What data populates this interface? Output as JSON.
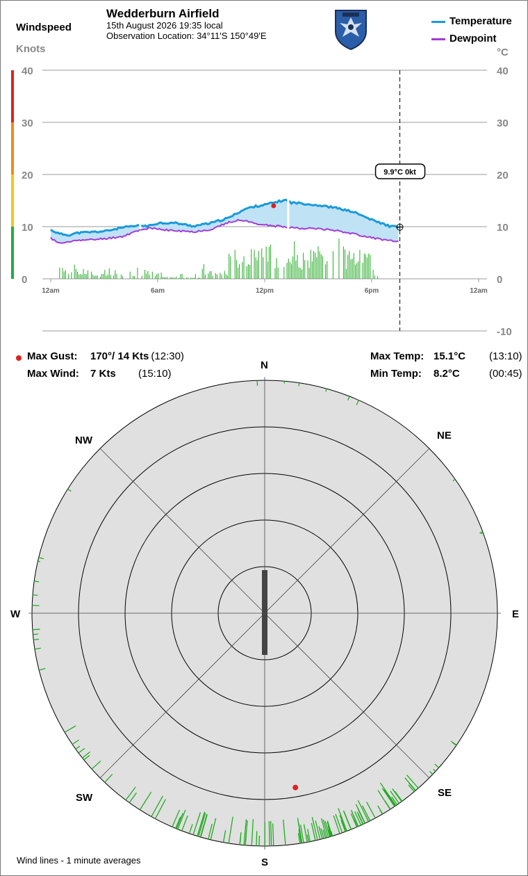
{
  "header": {
    "site": "Wedderburn Airfield",
    "datetime": "15th August 2026  19:35 local",
    "location": "Observation Location: 34°11'S 150°49'E"
  },
  "left_axis": {
    "title": "Windspeed",
    "unit": "Knots"
  },
  "right_axis": {
    "unit": "°C"
  },
  "legend": [
    {
      "name": "Temperature",
      "color": "#1a9ad9"
    },
    {
      "name": "Dewpoint",
      "color": "#a23ad9"
    }
  ],
  "cursor_label": "9.9°C  0kt",
  "stats": {
    "max_gust_label": "Max Gust:",
    "max_gust_value": "170°/ 14 Kts",
    "max_gust_time": "(12:30)",
    "max_wind_label": "Max Wind:",
    "max_wind_value": "7 Kts",
    "max_wind_time": "(15:10)",
    "max_temp_label": "Max Temp:",
    "max_temp_value": "15.1°C",
    "max_temp_time": "(13:10)",
    "min_temp_label": "Min Temp:",
    "min_temp_value": "8.2°C",
    "min_temp_time": "(00:45)"
  },
  "compass": {
    "n": "N",
    "ne": "NE",
    "e": "E",
    "se": "SE",
    "s": "S",
    "sw": "SW",
    "w": "W",
    "nw": "NW"
  },
  "footer": "Wind lines - 1 minute averages",
  "colors": {
    "temperature": "#1a9ad9",
    "dewpoint": "#a23ad9",
    "fill": "#bfe2f5",
    "wind_bars": "#22aa22",
    "gust": "#dd2222",
    "rose_bg": "#e0e0e0",
    "scale_green": "#22aa44",
    "scale_yellow": "#f2c81a",
    "scale_orange": "#f08a1e",
    "scale_red": "#dd2222"
  },
  "chart_data": {
    "type": "line",
    "x_ticks": [
      "12am",
      "6am",
      "12pm",
      "6pm",
      "12am"
    ],
    "x_range_hours": [
      0,
      24
    ],
    "cursor_hour": 19.58,
    "wind_axis": {
      "label": "Knots",
      "ticks": [
        0,
        10,
        20,
        30,
        40
      ],
      "range": [
        0,
        40
      ]
    },
    "temp_axis": {
      "label": "°C",
      "ticks": [
        -10,
        0,
        10,
        20,
        30,
        40
      ],
      "range": [
        -10,
        40
      ]
    },
    "series": [
      {
        "name": "Temperature",
        "hours": [
          0,
          0.5,
          1,
          1.5,
          2,
          3,
          4,
          5,
          5.5,
          6,
          7,
          8,
          9,
          10,
          10.5,
          11,
          11.5,
          12,
          12.5,
          13,
          13.17,
          13.5,
          14,
          15,
          16,
          17,
          18,
          19,
          19.58
        ],
        "values": [
          9.4,
          8.6,
          8.4,
          8.8,
          8.9,
          9.1,
          9.8,
          10.2,
          10.1,
          10.7,
          10.7,
          10.1,
          10.7,
          11.7,
          12.7,
          13.5,
          13.9,
          14.2,
          14.6,
          15.0,
          15.1,
          14.6,
          14.5,
          14.1,
          13.6,
          12.8,
          11.3,
          10.1,
          9.9
        ]
      },
      {
        "name": "Dewpoint",
        "hours": [
          0,
          0.5,
          1,
          1.5,
          2,
          3,
          4,
          5,
          5.5,
          6,
          7,
          8,
          9,
          10,
          10.5,
          11,
          12,
          13,
          14,
          15,
          16,
          17,
          18,
          19,
          19.58
        ],
        "values": [
          7.8,
          6.8,
          7.0,
          7.5,
          7.4,
          7.7,
          8.1,
          9.4,
          9.7,
          9.5,
          9.2,
          9.0,
          9.5,
          10.8,
          11.3,
          11.0,
          10.3,
          10.0,
          9.7,
          9.6,
          9.3,
          8.6,
          7.9,
          7.3,
          7.1
        ]
      }
    ],
    "wind_bars": {
      "description": "1-minute average windspeed in knots",
      "segments": [
        {
          "from_hour": 0.5,
          "to_hour": 2.2,
          "base_knots": 1.5,
          "peak_knots": 2.3
        },
        {
          "from_hour": 2.2,
          "to_hour": 4.2,
          "base_knots": 0.8,
          "peak_knots": 1.8
        },
        {
          "from_hour": 4.2,
          "to_hour": 6.2,
          "base_knots": 1.2,
          "peak_knots": 2.0
        },
        {
          "from_hour": 6.2,
          "to_hour": 8.5,
          "base_knots": 0.3,
          "peak_knots": 1.0
        },
        {
          "from_hour": 8.5,
          "to_hour": 10.0,
          "base_knots": 1.2,
          "peak_knots": 2.6
        },
        {
          "from_hour": 10.0,
          "to_hour": 18.0,
          "base_knots": 4.5,
          "peak_knots": 6.4
        },
        {
          "from_hour": 18.0,
          "to_hour": 18.6,
          "base_knots": 0.8,
          "peak_knots": 1.5
        }
      ]
    },
    "max_gust_point": {
      "hour": 12.5,
      "knots": 14
    },
    "wind_rose": {
      "rings_knots": [
        5,
        10,
        15,
        20,
        25
      ],
      "current_direction_deg": 180,
      "gust_point": {
        "direction_deg": 170,
        "knots": 14
      }
    }
  }
}
